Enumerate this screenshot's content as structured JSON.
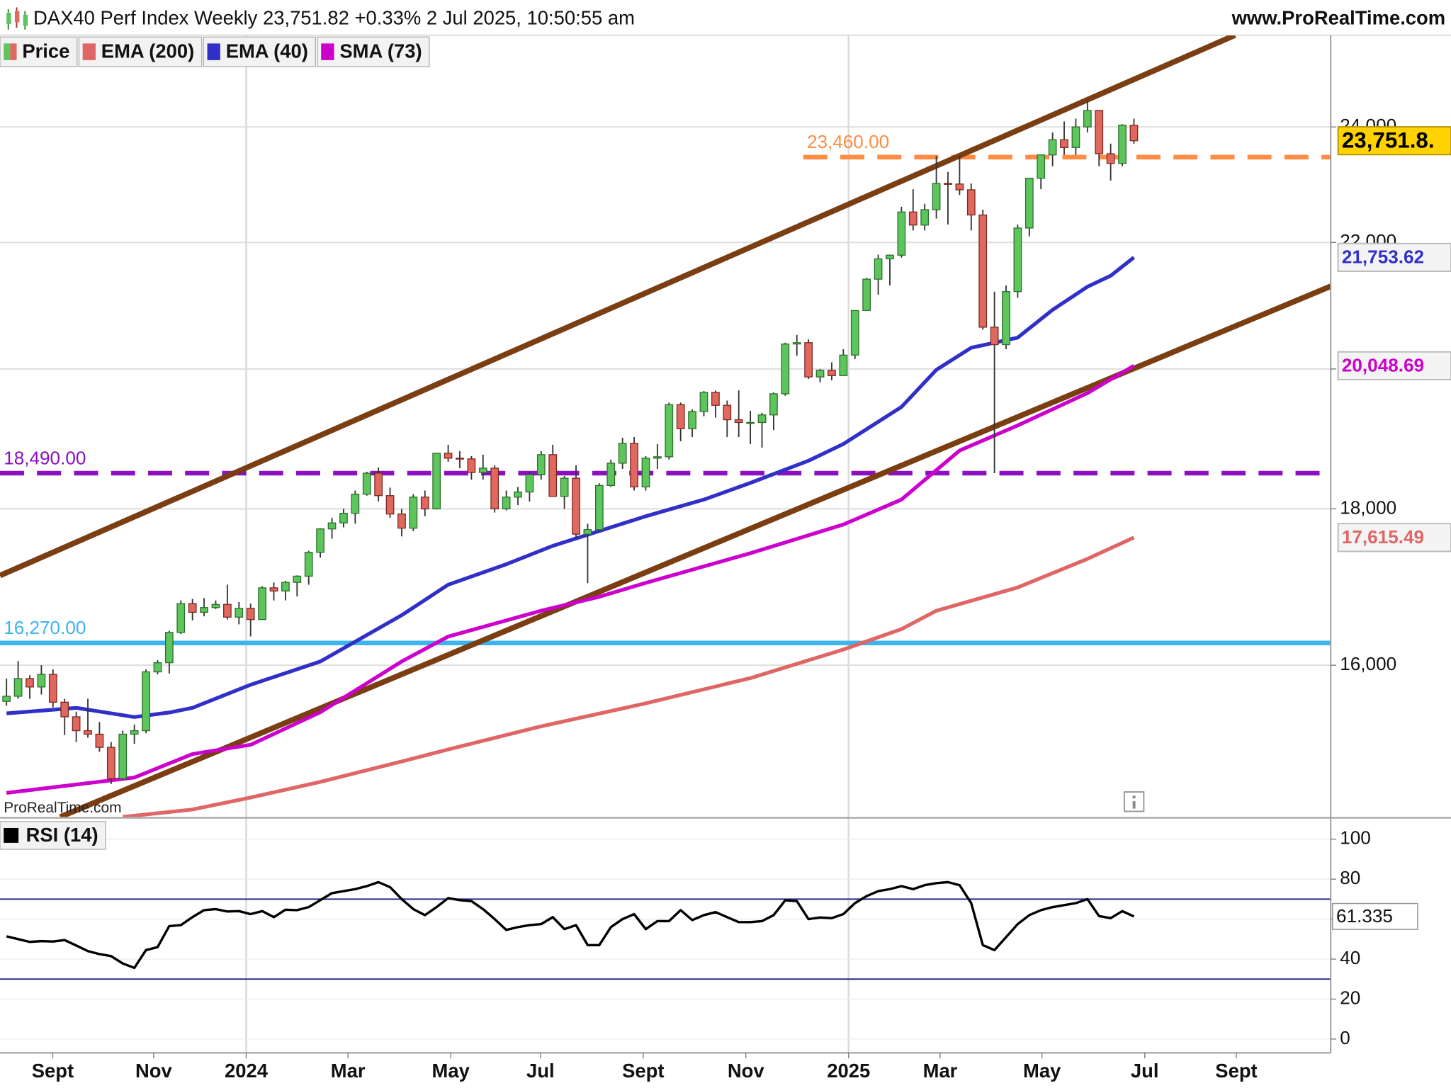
{
  "chart_data": [
    {
      "type": "candlestick",
      "title": "DAX40 Perf Index Weekly 23,751.82 +0.33% 2 Jul 2025, 10:50:55 am",
      "source": "www.ProRealTime.com",
      "watermark": "ProRealTime.com",
      "log_scale": true,
      "grid": true,
      "xlim": [
        -0.56,
        113.93
      ],
      "xticks": [
        {
          "value": 3.98,
          "label": "Sept"
        },
        {
          "value": 12.66,
          "label": "Nov"
        },
        {
          "value": 20.62,
          "label": "2024"
        },
        {
          "value": 29.38,
          "label": "Mar"
        },
        {
          "value": 38.22,
          "label": "May"
        },
        {
          "value": 45.94,
          "label": "Jul"
        },
        {
          "value": 54.78,
          "label": "Sept"
        },
        {
          "value": 63.61,
          "label": "Nov"
        },
        {
          "value": 72.45,
          "label": "2025"
        },
        {
          "value": 80.33,
          "label": "Mar"
        },
        {
          "value": 89.09,
          "label": "May"
        },
        {
          "value": 97.93,
          "label": "Jul"
        },
        {
          "value": 105.81,
          "label": "Sept"
        }
      ],
      "ylim": [
        14272,
        25718
      ],
      "yticks": [
        {
          "value": 16000,
          "label": "16,000"
        },
        {
          "value": 18000,
          "label": "18,000"
        },
        {
          "value": 20000,
          "label": "20,000"
        },
        {
          "value": 22000,
          "label": "22,000"
        },
        {
          "value": 24000,
          "label": "24,000"
        }
      ],
      "candles": {
        "name": "Price",
        "up_color": "#5cc55c",
        "down_color": "#e0685f",
        "open": [
          15570,
          15630,
          15840,
          15740,
          15890,
          15560,
          15390,
          15230,
          15190,
          15040,
          14690,
          15190,
          15230,
          15920,
          16030,
          16400,
          16760,
          16650,
          16710,
          16750,
          16590,
          16700,
          16560,
          16960,
          16920,
          17030,
          17110,
          17420,
          17730,
          17810,
          17940,
          18200,
          18490,
          18180,
          17930,
          17740,
          18160,
          18000,
          18770,
          18700,
          18690,
          18500,
          18560,
          18000,
          18160,
          18230,
          18470,
          18750,
          18170,
          18420,
          17660,
          17720,
          18320,
          18630,
          18910,
          18300,
          18700,
          18720,
          19470,
          19120,
          19370,
          19650,
          19460,
          19250,
          19210,
          19210,
          19320,
          19630,
          20380,
          20400,
          19880,
          19980,
          19900,
          20210,
          20900,
          21400,
          21730,
          21790,
          22510,
          22290,
          22550,
          23000,
          22990,
          22890,
          22460,
          20640,
          20370,
          21200,
          22240,
          23090,
          23500,
          23770,
          23630,
          24000,
          24300,
          23520,
          23350,
          24030
        ],
        "high": [
          15840,
          16050,
          15880,
          16000,
          15950,
          15600,
          15450,
          15600,
          15330,
          15100,
          15230,
          15300,
          15950,
          16060,
          16420,
          16800,
          16820,
          16830,
          16800,
          17000,
          16780,
          16760,
          16980,
          17030,
          17050,
          17120,
          17440,
          17740,
          17880,
          18000,
          18250,
          18510,
          18570,
          18290,
          18000,
          18200,
          18250,
          18770,
          18890,
          18800,
          18730,
          18750,
          18600,
          18250,
          18300,
          18500,
          18800,
          18890,
          18450,
          18600,
          17800,
          18350,
          18680,
          18990,
          19000,
          18730,
          18900,
          19500,
          19500,
          19400,
          19670,
          19680,
          19530,
          19680,
          19380,
          19350,
          19650,
          20400,
          20520,
          20450,
          20000,
          20100,
          20300,
          20900,
          21420,
          21800,
          21800,
          22600,
          22900,
          22650,
          23480,
          23200,
          23480,
          23000,
          22550,
          21200,
          21300,
          22300,
          23100,
          23500,
          23900,
          24100,
          24150,
          24480,
          24300,
          23700,
          24050,
          24150
        ],
        "low": [
          15520,
          15600,
          15600,
          15650,
          15500,
          15180,
          15100,
          15150,
          14990,
          14630,
          14680,
          15080,
          15200,
          15890,
          15900,
          16380,
          16550,
          16600,
          16690,
          16560,
          16500,
          16350,
          16560,
          16800,
          16800,
          16850,
          17000,
          17350,
          17600,
          17750,
          17800,
          18180,
          18100,
          17880,
          17630,
          17700,
          17900,
          17990,
          18650,
          18560,
          18400,
          18400,
          17950,
          17980,
          18050,
          18100,
          18400,
          18200,
          18000,
          17600,
          17020,
          17700,
          18300,
          18550,
          18250,
          18250,
          18550,
          18680,
          18940,
          19000,
          19300,
          19280,
          19000,
          19000,
          18900,
          18850,
          19100,
          19600,
          20200,
          19850,
          19800,
          19830,
          19900,
          20150,
          20900,
          21150,
          21300,
          21750,
          22200,
          22200,
          22400,
          22300,
          22800,
          22200,
          20600,
          18490,
          20300,
          21100,
          22100,
          22900,
          23300,
          23500,
          23500,
          23900,
          23300,
          23050,
          23300,
          23700
        ],
        "close": [
          15630,
          15840,
          15740,
          15890,
          15560,
          15390,
          15230,
          15190,
          15040,
          14690,
          15190,
          15230,
          15920,
          16030,
          16400,
          16760,
          16650,
          16710,
          16750,
          16590,
          16700,
          16560,
          16960,
          16920,
          17030,
          17110,
          17420,
          17730,
          17810,
          17940,
          18200,
          18490,
          18180,
          17930,
          17740,
          18160,
          18000,
          18770,
          18700,
          18690,
          18500,
          18560,
          18000,
          18160,
          18230,
          18470,
          18750,
          18170,
          18420,
          17660,
          17720,
          18320,
          18630,
          18910,
          18300,
          18700,
          18720,
          19470,
          19120,
          19370,
          19650,
          19460,
          19250,
          19210,
          19210,
          19320,
          19630,
          20380,
          20400,
          19880,
          19980,
          19900,
          20210,
          20900,
          21400,
          21730,
          21790,
          22510,
          22290,
          22550,
          23000,
          22990,
          22890,
          22460,
          20640,
          20370,
          21200,
          22240,
          23090,
          23500,
          23770,
          23630,
          24000,
          24300,
          23520,
          23350,
          24030,
          23751.82
        ],
        "last_label": "23,751.8.",
        "label_color": "#ffd200"
      },
      "series": [
        {
          "name": "EMA (200)",
          "color": "#e06666",
          "x": [
            10,
            16,
            21,
            27,
            34,
            38,
            46,
            55,
            64,
            72,
            77,
            80,
            87,
            93,
            97
          ],
          "values": [
            14272,
            14352,
            14482,
            14654,
            14881,
            15016,
            15280,
            15547,
            15845,
            16190,
            16441,
            16670,
            16965,
            17334,
            17615.49
          ],
          "last_label": "17,615.49"
        },
        {
          "name": "EMA (40)",
          "color": "#3030c8",
          "x": [
            0,
            6,
            11,
            14,
            16,
            21,
            27,
            34,
            38,
            43,
            47,
            55,
            60,
            64,
            69,
            72,
            77,
            80,
            83,
            87,
            90,
            93,
            95,
            97
          ],
          "values": [
            15430,
            15494,
            15387,
            15440,
            15494,
            15766,
            16045,
            16614,
            17000,
            17264,
            17505,
            17900,
            18126,
            18355,
            18664,
            18901,
            19436,
            19987,
            20322,
            20478,
            20911,
            21278,
            21455,
            21753.62
          ],
          "last_label": "21,753.62"
        },
        {
          "name": "SMA (73)",
          "color": "#cc00cc",
          "x": [
            0,
            11,
            16,
            21,
            27,
            34,
            38,
            46,
            51,
            55,
            64,
            72,
            77,
            82,
            87,
            93,
            97
          ],
          "values": [
            14533,
            14702,
            14964,
            15069,
            15443,
            16045,
            16349,
            16670,
            16846,
            17024,
            17408,
            17789,
            18126,
            18808,
            19167,
            19640,
            20048.69
          ],
          "last_label": "20,048.69"
        }
      ],
      "trendlines": [
        {
          "color": "#7a3e12",
          "x": [
            -0.56,
            105.7
          ],
          "values": [
            17118,
            25718
          ]
        },
        {
          "color": "#7a3e12",
          "x": [
            4.62,
            113.93
          ],
          "values": [
            14272,
            21286
          ]
        }
      ],
      "levels": [
        {
          "label": "23,460.00",
          "value": 23460,
          "color": "#ff8c42",
          "style": "dashed",
          "x_start": 68.55
        },
        {
          "label": "18,490.00",
          "value": 18490,
          "color": "#8a10c0",
          "style": "dashed"
        },
        {
          "label": "16,270.00",
          "value": 16270,
          "color": "#3cb4ee",
          "style": "solid"
        }
      ]
    },
    {
      "type": "line",
      "legend": "RSI (14)",
      "grid": true,
      "ylim": [
        -6.9,
        110.2
      ],
      "yticks": [
        0,
        20,
        40,
        60,
        80,
        100
      ],
      "levels": [
        {
          "value": 70,
          "color": "#2a2a8a"
        },
        {
          "value": 30,
          "color": "#2a2a8a"
        }
      ],
      "series": [
        {
          "name": "RSI (14)",
          "color": "#000000",
          "values": [
            51.4,
            50,
            48.6,
            49,
            48.8,
            49.5,
            46.8,
            44,
            42.5,
            41.5,
            37.8,
            35.6,
            44.5,
            46,
            56.5,
            57,
            61,
            64.5,
            65,
            63.8,
            64,
            62.5,
            64,
            61,
            64.7,
            64.5,
            66,
            69.5,
            73,
            74,
            75,
            76.5,
            78.5,
            76,
            70,
            65,
            62,
            66,
            70.5,
            69.5,
            69,
            65,
            60,
            54.6,
            56,
            57,
            57.5,
            61,
            55,
            57,
            47,
            47,
            56,
            60,
            62.5,
            55,
            59,
            59,
            64.5,
            59.5,
            62,
            63.5,
            61,
            58.5,
            58.5,
            59,
            62,
            69.4,
            69,
            60,
            60.8,
            60.5,
            62.5,
            68,
            71.5,
            74,
            75,
            76.5,
            75,
            77,
            78,
            78.5,
            77,
            68,
            47,
            44.5,
            51,
            57.5,
            62,
            64.5,
            66,
            67,
            68,
            70,
            61.5,
            60.5,
            64,
            61.335
          ],
          "last_label": "61.335"
        }
      ]
    }
  ]
}
